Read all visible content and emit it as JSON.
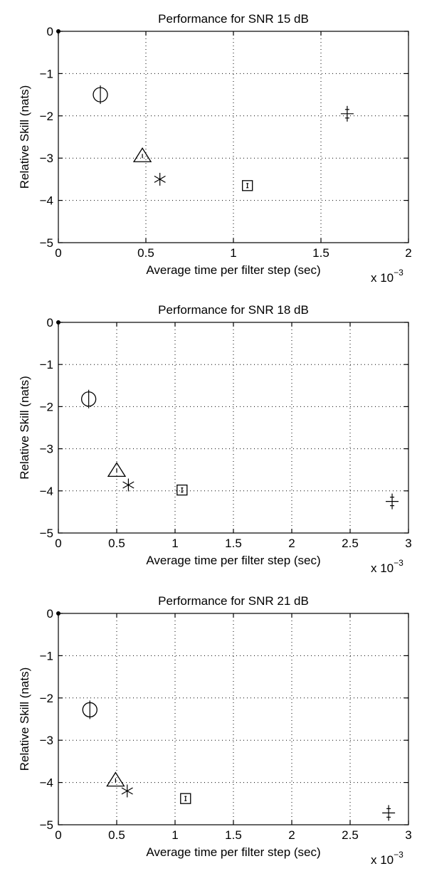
{
  "chart_data": [
    {
      "type": "scatter",
      "title": "Performance for SNR 15 dB",
      "xlabel": "Average time per filter step (sec)",
      "ylabel": "Relative Skill (nats)",
      "x_multiplier": "x 10",
      "x_multiplier_exp": "−3",
      "xlim": [
        0,
        2
      ],
      "ylim": [
        -5,
        0
      ],
      "xticks": [
        "0",
        "0.5",
        "1",
        "1.5",
        "2"
      ],
      "yticks": [
        "−5",
        "−4",
        "−3",
        "−2",
        "−1",
        "0"
      ],
      "grid": true,
      "points": [
        {
          "marker": "circle-vbar",
          "x": 0.24,
          "y": -1.5
        },
        {
          "marker": "triangle",
          "x": 0.48,
          "y": -2.95
        },
        {
          "marker": "asterisk",
          "x": 0.58,
          "y": -3.5
        },
        {
          "marker": "square",
          "x": 1.08,
          "y": -3.65
        },
        {
          "marker": "plus-errorbar",
          "x": 1.65,
          "y": -1.95
        },
        {
          "marker": "dot",
          "x": 0,
          "y": 0
        }
      ]
    },
    {
      "type": "scatter",
      "title": "Performance for SNR 18 dB",
      "xlabel": "Average time per filter step (sec)",
      "ylabel": "Relative Skill (nats)",
      "x_multiplier": "x 10",
      "x_multiplier_exp": "−3",
      "xlim": [
        0,
        3
      ],
      "ylim": [
        -5,
        0
      ],
      "xticks": [
        "0",
        "0.5",
        "1",
        "1.5",
        "2",
        "2.5",
        "3"
      ],
      "yticks": [
        "−5",
        "−4",
        "−3",
        "−2",
        "−1",
        "0"
      ],
      "grid": true,
      "points": [
        {
          "marker": "circle-vbar",
          "x": 0.26,
          "y": -1.82
        },
        {
          "marker": "triangle",
          "x": 0.5,
          "y": -3.52
        },
        {
          "marker": "asterisk",
          "x": 0.6,
          "y": -3.86
        },
        {
          "marker": "square",
          "x": 1.06,
          "y": -3.98
        },
        {
          "marker": "plus-errorbar",
          "x": 2.86,
          "y": -4.25
        },
        {
          "marker": "dot",
          "x": 0,
          "y": 0
        }
      ]
    },
    {
      "type": "scatter",
      "title": "Performance for SNR 21 dB",
      "xlabel": "Average time per filter step (sec)",
      "ylabel": "Relative Skill (nats)",
      "x_multiplier": "x 10",
      "x_multiplier_exp": "−3",
      "xlim": [
        0,
        3
      ],
      "ylim": [
        -5,
        0
      ],
      "xticks": [
        "0",
        "0.5",
        "1",
        "1.5",
        "2",
        "2.5",
        "3"
      ],
      "yticks": [
        "−5",
        "−4",
        "−3",
        "−2",
        "−1",
        "0"
      ],
      "grid": true,
      "points": [
        {
          "marker": "circle-vbar",
          "x": 0.27,
          "y": -2.28
        },
        {
          "marker": "triangle",
          "x": 0.49,
          "y": -3.95
        },
        {
          "marker": "asterisk",
          "x": 0.59,
          "y": -4.2
        },
        {
          "marker": "square",
          "x": 1.09,
          "y": -4.38
        },
        {
          "marker": "plus-errorbar",
          "x": 2.83,
          "y": -4.72
        },
        {
          "marker": "dot",
          "x": 0,
          "y": 0
        }
      ]
    }
  ]
}
